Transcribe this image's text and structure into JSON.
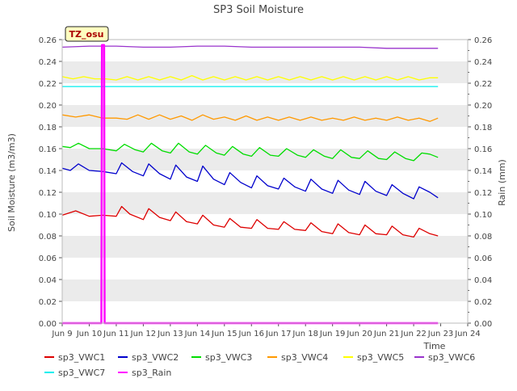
{
  "chart_data": {
    "type": "line",
    "title": "SP3 Soil Moisture",
    "xlabel": "Time",
    "ylabel": "Soil Moisture (m3/m3)",
    "y2label": "Rain (mm)",
    "badge": "TZ_osu",
    "x_range": [
      "Jun 9",
      "Jun 24"
    ],
    "x_ticks": [
      "Jun 9",
      "Jun 10",
      "Jun 11",
      "Jun 12",
      "Jun 13",
      "Jun 14",
      "Jun 15",
      "Jun 16",
      "Jun 17",
      "Jun 18",
      "Jun 19",
      "Jun 20",
      "Jun 21",
      "Jun 22",
      "Jun 23",
      "Jun 24"
    ],
    "ylim": [
      0,
      0.26
    ],
    "y2lim": [
      0,
      0.26
    ],
    "y_ticks": [
      "0.00",
      "0.02",
      "0.04",
      "0.06",
      "0.08",
      "0.10",
      "0.12",
      "0.14",
      "0.16",
      "0.18",
      "0.20",
      "0.22",
      "0.24",
      "0.26"
    ],
    "y2_ticks": [
      "0.00",
      "0.02",
      "0.04",
      "0.06",
      "0.08",
      "0.10",
      "0.12",
      "0.14",
      "0.16",
      "0.18",
      "0.20",
      "0.22",
      "0.24",
      "0.26"
    ],
    "grid": "horizontal bands",
    "legend_position": "bottom",
    "series": [
      {
        "name": "sp3_VWC1",
        "color": "#dd0000",
        "x": [
          "Jun 9",
          "Jun 9.5",
          "Jun 10",
          "Jun 10.5",
          "Jun 11",
          "Jun 11.2",
          "Jun 11.5",
          "Jun 12",
          "Jun 12.2",
          "Jun 12.6",
          "Jun 13",
          "Jun 13.2",
          "Jun 13.6",
          "Jun 14",
          "Jun 14.2",
          "Jun 14.6",
          "Jun 15",
          "Jun 15.2",
          "Jun 15.6",
          "Jun 16",
          "Jun 16.2",
          "Jun 16.6",
          "Jun 17",
          "Jun 17.2",
          "Jun 17.6",
          "Jun 18",
          "Jun 18.2",
          "Jun 18.6",
          "Jun 19",
          "Jun 19.2",
          "Jun 19.6",
          "Jun 20",
          "Jun 20.2",
          "Jun 20.6",
          "Jun 21",
          "Jun 21.2",
          "Jun 21.6",
          "Jun 22",
          "Jun 22.2",
          "Jun 22.6",
          "Jun 22.9"
        ],
        "values": [
          0.099,
          0.103,
          0.098,
          0.099,
          0.098,
          0.107,
          0.1,
          0.095,
          0.105,
          0.097,
          0.094,
          0.102,
          0.093,
          0.091,
          0.099,
          0.09,
          0.088,
          0.096,
          0.088,
          0.087,
          0.095,
          0.087,
          0.086,
          0.093,
          0.086,
          0.085,
          0.092,
          0.084,
          0.082,
          0.091,
          0.083,
          0.081,
          0.09,
          0.082,
          0.081,
          0.089,
          0.081,
          0.079,
          0.087,
          0.082,
          0.08
        ]
      },
      {
        "name": "sp3_VWC2",
        "color": "#0000cc",
        "x": [
          "Jun 9",
          "Jun 9.3",
          "Jun 9.6",
          "Jun 10",
          "Jun 10.5",
          "Jun 11",
          "Jun 11.2",
          "Jun 11.6",
          "Jun 12",
          "Jun 12.2",
          "Jun 12.6",
          "Jun 13",
          "Jun 13.2",
          "Jun 13.6",
          "Jun 14",
          "Jun 14.2",
          "Jun 14.6",
          "Jun 15",
          "Jun 15.2",
          "Jun 15.6",
          "Jun 16",
          "Jun 16.2",
          "Jun 16.6",
          "Jun 17",
          "Jun 17.2",
          "Jun 17.6",
          "Jun 18",
          "Jun 18.2",
          "Jun 18.6",
          "Jun 19",
          "Jun 19.2",
          "Jun 19.6",
          "Jun 20",
          "Jun 20.2",
          "Jun 20.6",
          "Jun 21",
          "Jun 21.2",
          "Jun 21.6",
          "Jun 22",
          "Jun 22.2",
          "Jun 22.6",
          "Jun 22.9"
        ],
        "values": [
          0.142,
          0.14,
          0.146,
          0.14,
          0.139,
          0.137,
          0.147,
          0.139,
          0.135,
          0.146,
          0.137,
          0.132,
          0.145,
          0.134,
          0.13,
          0.144,
          0.132,
          0.127,
          0.138,
          0.129,
          0.124,
          0.135,
          0.126,
          0.123,
          0.133,
          0.125,
          0.121,
          0.132,
          0.123,
          0.119,
          0.131,
          0.122,
          0.118,
          0.13,
          0.121,
          0.117,
          0.127,
          0.119,
          0.114,
          0.125,
          0.12,
          0.115
        ]
      },
      {
        "name": "sp3_VWC3",
        "color": "#00dd00",
        "x": [
          "Jun 9",
          "Jun 9.3",
          "Jun 9.6",
          "Jun 10",
          "Jun 10.5",
          "Jun 11",
          "Jun 11.3",
          "Jun 11.7",
          "Jun 12",
          "Jun 12.3",
          "Jun 12.7",
          "Jun 13",
          "Jun 13.3",
          "Jun 13.7",
          "Jun 14",
          "Jun 14.3",
          "Jun 14.7",
          "Jun 15",
          "Jun 15.3",
          "Jun 15.7",
          "Jun 16",
          "Jun 16.3",
          "Jun 16.7",
          "Jun 17",
          "Jun 17.3",
          "Jun 17.7",
          "Jun 18",
          "Jun 18.3",
          "Jun 18.7",
          "Jun 19",
          "Jun 19.3",
          "Jun 19.7",
          "Jun 20",
          "Jun 20.3",
          "Jun 20.7",
          "Jun 21",
          "Jun 21.3",
          "Jun 21.7",
          "Jun 22",
          "Jun 22.3",
          "Jun 22.6",
          "Jun 22.9"
        ],
        "values": [
          0.162,
          0.161,
          0.165,
          0.16,
          0.16,
          0.158,
          0.164,
          0.159,
          0.157,
          0.165,
          0.158,
          0.156,
          0.165,
          0.157,
          0.155,
          0.163,
          0.156,
          0.154,
          0.162,
          0.155,
          0.153,
          0.161,
          0.154,
          0.153,
          0.16,
          0.154,
          0.152,
          0.159,
          0.153,
          0.151,
          0.159,
          0.152,
          0.151,
          0.158,
          0.151,
          0.15,
          0.157,
          0.151,
          0.149,
          0.156,
          0.155,
          0.152
        ]
      },
      {
        "name": "sp3_VWC4",
        "color": "#ff9900",
        "x": [
          "Jun 9",
          "Jun 9.5",
          "Jun 10",
          "Jun 10.5",
          "Jun 11",
          "Jun 11.4",
          "Jun 11.8",
          "Jun 12.2",
          "Jun 12.6",
          "Jun 13",
          "Jun 13.4",
          "Jun 13.8",
          "Jun 14.2",
          "Jun 14.6",
          "Jun 15",
          "Jun 15.4",
          "Jun 15.8",
          "Jun 16.2",
          "Jun 16.6",
          "Jun 17",
          "Jun 17.4",
          "Jun 17.8",
          "Jun 18.2",
          "Jun 18.6",
          "Jun 19",
          "Jun 19.4",
          "Jun 19.8",
          "Jun 20.2",
          "Jun 20.6",
          "Jun 21",
          "Jun 21.4",
          "Jun 21.8",
          "Jun 22.2",
          "Jun 22.6",
          "Jun 22.9"
        ],
        "values": [
          0.191,
          0.189,
          0.191,
          0.188,
          0.188,
          0.187,
          0.191,
          0.187,
          0.191,
          0.187,
          0.19,
          0.186,
          0.191,
          0.187,
          0.189,
          0.186,
          0.19,
          0.186,
          0.189,
          0.186,
          0.189,
          0.186,
          0.189,
          0.186,
          0.188,
          0.186,
          0.189,
          0.186,
          0.188,
          0.186,
          0.189,
          0.186,
          0.188,
          0.185,
          0.188
        ]
      },
      {
        "name": "sp3_VWC5",
        "color": "#ffff00",
        "x": [
          "Jun 9",
          "Jun 9.4",
          "Jun 9.8",
          "Jun 10.2",
          "Jun 10.6",
          "Jun 11",
          "Jun 11.4",
          "Jun 11.8",
          "Jun 12.2",
          "Jun 12.6",
          "Jun 13",
          "Jun 13.4",
          "Jun 13.8",
          "Jun 14.2",
          "Jun 14.6",
          "Jun 15",
          "Jun 15.4",
          "Jun 15.8",
          "Jun 16.2",
          "Jun 16.6",
          "Jun 17",
          "Jun 17.4",
          "Jun 17.8",
          "Jun 18.2",
          "Jun 18.6",
          "Jun 19",
          "Jun 19.4",
          "Jun 19.8",
          "Jun 20.2",
          "Jun 20.6",
          "Jun 21",
          "Jun 21.4",
          "Jun 21.8",
          "Jun 22.2",
          "Jun 22.6",
          "Jun 22.9"
        ],
        "values": [
          0.226,
          0.224,
          0.226,
          0.224,
          0.224,
          0.223,
          0.226,
          0.223,
          0.226,
          0.223,
          0.226,
          0.223,
          0.227,
          0.223,
          0.226,
          0.223,
          0.226,
          0.223,
          0.226,
          0.223,
          0.226,
          0.223,
          0.226,
          0.223,
          0.226,
          0.223,
          0.226,
          0.223,
          0.226,
          0.223,
          0.226,
          0.223,
          0.226,
          0.223,
          0.225,
          0.225
        ]
      },
      {
        "name": "sp3_VWC6",
        "color": "#9933cc",
        "x": [
          "Jun 9",
          "Jun 10",
          "Jun 11",
          "Jun 12",
          "Jun 13",
          "Jun 14",
          "Jun 15",
          "Jun 16",
          "Jun 17",
          "Jun 18",
          "Jun 19",
          "Jun 20",
          "Jun 21",
          "Jun 22",
          "Jun 22.9"
        ],
        "values": [
          0.253,
          0.254,
          0.254,
          0.253,
          0.253,
          0.254,
          0.254,
          0.253,
          0.253,
          0.253,
          0.253,
          0.253,
          0.252,
          0.252,
          0.252
        ]
      },
      {
        "name": "sp3_VWC7",
        "color": "#00eeee",
        "x": [
          "Jun 9",
          "Jun 11",
          "Jun 13",
          "Jun 15",
          "Jun 17",
          "Jun 19",
          "Jun 21",
          "Jun 22.9"
        ],
        "values": [
          0.217,
          0.217,
          0.217,
          0.217,
          0.217,
          0.217,
          0.217,
          0.217
        ]
      },
      {
        "name": "sp3_Rain",
        "color": "#ff00ff",
        "x": [
          "Jun 9",
          "Jun 10.45",
          "Jun 10.47",
          "Jun 10.55",
          "Jun 10.57",
          "Jun 22.9"
        ],
        "values": [
          0,
          0,
          0.255,
          0.255,
          0,
          0
        ]
      }
    ]
  }
}
